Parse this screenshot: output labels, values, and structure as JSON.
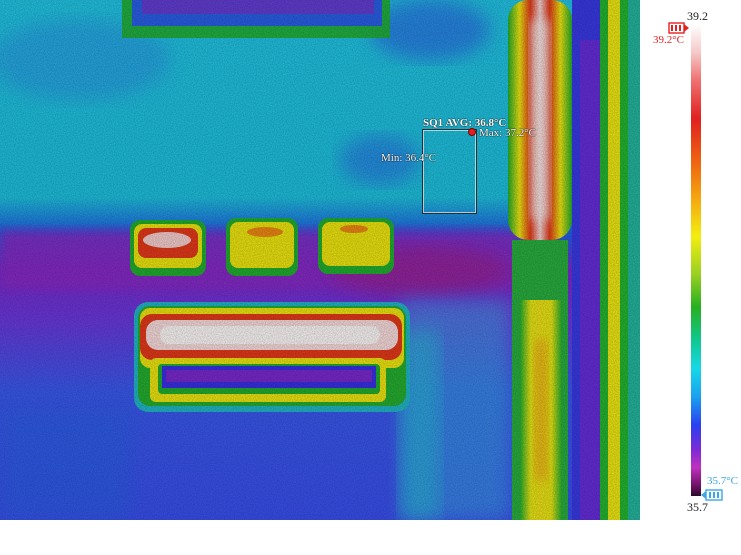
{
  "thermal_image": {
    "roi": {
      "label": "SQ1 AVG: 36.8°C",
      "max_label": "Max: 37.2°C",
      "min_label": "Min: 36.4°C"
    }
  },
  "scale": {
    "max_value": "39.2",
    "min_value": "35.7",
    "high_marker_label": "39.2°C",
    "low_marker_label": "35.7°C",
    "high_marker_color": "#e52020",
    "low_marker_color": "#3aa8e8"
  }
}
